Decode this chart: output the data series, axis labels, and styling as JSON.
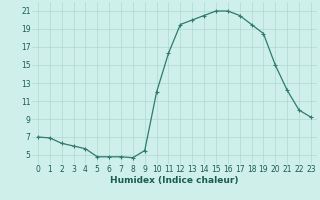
{
  "x": [
    0,
    1,
    2,
    3,
    4,
    5,
    6,
    7,
    8,
    9,
    10,
    11,
    12,
    13,
    14,
    15,
    16,
    17,
    18,
    19,
    20,
    21,
    22,
    23
  ],
  "y": [
    7.0,
    6.9,
    6.3,
    6.0,
    5.7,
    4.8,
    4.8,
    4.8,
    4.7,
    5.5,
    12.0,
    16.3,
    19.5,
    20.0,
    20.5,
    21.0,
    21.0,
    20.5,
    19.5,
    18.5,
    15.0,
    12.2,
    10.0,
    9.2
  ],
  "line_color": "#2d7a6e",
  "marker": "+",
  "marker_size": 3,
  "marker_linewidth": 0.8,
  "bg_color": "#cff0ea",
  "grid_color": "#b0d8d2",
  "xlabel": "Humidex (Indice chaleur)",
  "xlim": [
    -0.5,
    23.5
  ],
  "ylim": [
    4.0,
    22.0
  ],
  "xticks": [
    0,
    1,
    2,
    3,
    4,
    5,
    6,
    7,
    8,
    9,
    10,
    11,
    12,
    13,
    14,
    15,
    16,
    17,
    18,
    19,
    20,
    21,
    22,
    23
  ],
  "yticks": [
    5,
    7,
    9,
    11,
    13,
    15,
    17,
    19,
    21
  ],
  "tick_fontsize": 5.5,
  "xlabel_fontsize": 6.5,
  "axis_color": "#1a5c52",
  "linewidth": 0.9
}
